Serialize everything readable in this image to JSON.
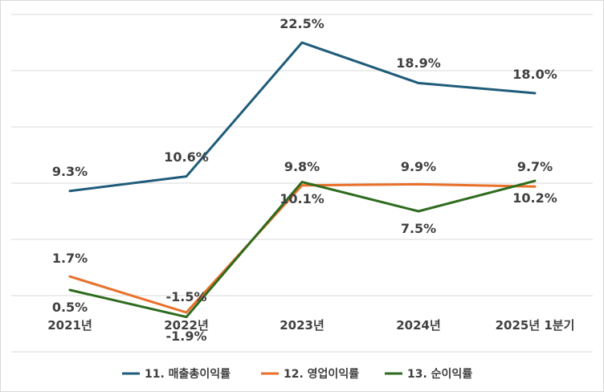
{
  "chart_data": {
    "type": "line",
    "categories": [
      "2021년",
      "2022년",
      "2023년",
      "2024년",
      "2025년 1분기"
    ],
    "ylim": [
      -5,
      25
    ],
    "grid": true,
    "legend_position": "bottom",
    "series": [
      {
        "name": "11. 매출총이익률",
        "color": "#1f5c7a",
        "values": [
          9.3,
          10.6,
          22.5,
          18.9,
          18.0
        ],
        "labels": [
          "9.3%",
          "10.6%",
          "22.5%",
          "18.9%",
          "18.0%"
        ]
      },
      {
        "name": "12. 영업이익률",
        "color": "#e8702a",
        "values": [
          1.7,
          -1.5,
          9.8,
          9.9,
          9.7
        ],
        "labels": [
          "1.7%",
          "-1.5%",
          "9.8%",
          "9.9%",
          "9.7%"
        ]
      },
      {
        "name": "13. 순이익률",
        "color": "#2e6b1e",
        "values": [
          0.5,
          -1.9,
          10.1,
          7.5,
          10.2
        ],
        "labels": [
          "0.5%",
          "-1.9%",
          "10.1%",
          "7.5%",
          "10.2%"
        ]
      }
    ]
  }
}
